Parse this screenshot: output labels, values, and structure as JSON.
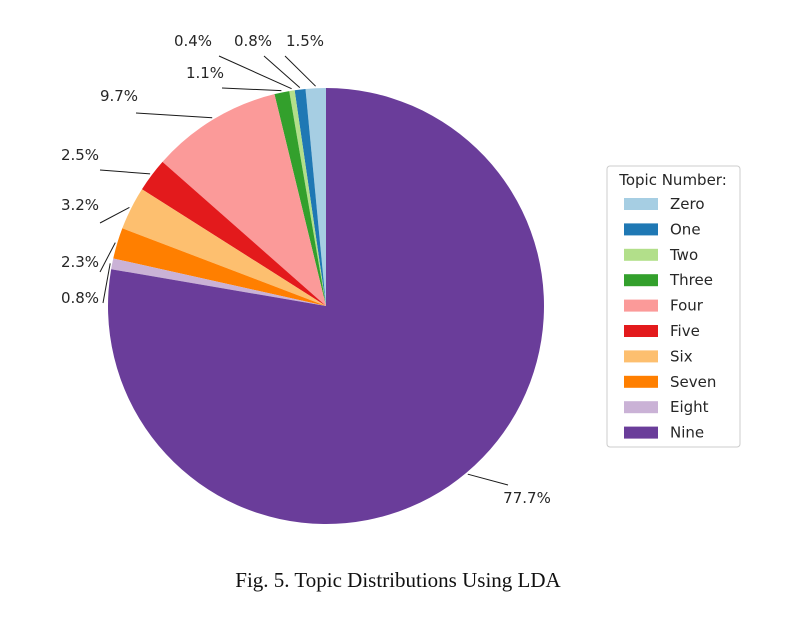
{
  "chart_data": {
    "type": "pie",
    "categories": [
      "Zero",
      "One",
      "Two",
      "Three",
      "Four",
      "Five",
      "Six",
      "Seven",
      "Eight",
      "Nine"
    ],
    "values": [
      1.5,
      0.8,
      0.4,
      1.1,
      9.7,
      2.5,
      3.2,
      2.3,
      0.8,
      77.7
    ],
    "labels": [
      "1.5%",
      "0.8%",
      "0.4%",
      "1.1%",
      "9.7%",
      "2.5%",
      "3.2%",
      "2.3%",
      "0.8%",
      "77.7%"
    ],
    "colors": [
      "#a6cee3",
      "#1f78b4",
      "#b2df8a",
      "#33a02c",
      "#fb9a99",
      "#e31a1c",
      "#fdbf6f",
      "#ff7f00",
      "#cab2d6",
      "#6a3d9a"
    ],
    "legend_title": "Topic Number:",
    "legend_position": "right",
    "start_angle_deg": 90,
    "direction": "counterclockwise"
  },
  "caption": "Fig. 5.   Topic Distributions Using LDA"
}
